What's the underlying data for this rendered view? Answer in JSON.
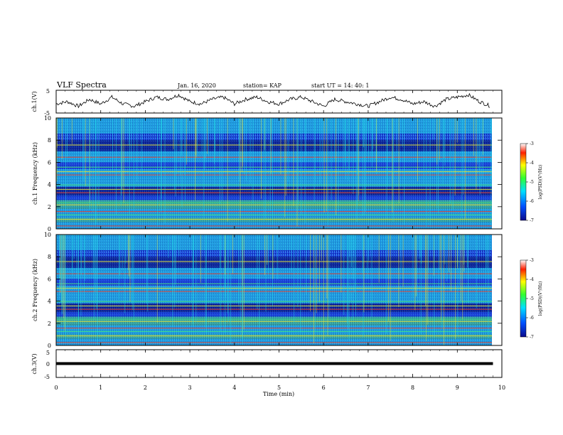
{
  "header": {
    "title": "VLF Spectra",
    "date": "Jan. 16, 2020",
    "station": "station= KAP",
    "start": "start UT =  14: 40: 1"
  },
  "chart_data": [
    {
      "type": "line",
      "name": "ch1-waveform",
      "ylabel": "ch.1(V)",
      "ylim": [
        -5,
        5
      ],
      "xlim": [
        0,
        10
      ],
      "x": [
        0,
        0.25,
        0.5,
        0.75,
        1,
        1.25,
        1.5,
        1.75,
        2,
        2.25,
        2.5,
        2.75,
        3,
        3.25,
        3.5,
        3.75,
        4,
        4.25,
        4.5,
        4.75,
        5,
        5.25,
        5.5,
        5.75,
        6,
        6.25,
        6.5,
        6.75,
        7,
        7.25,
        7.5,
        7.75,
        8,
        8.25,
        8.5,
        8.75,
        9,
        9.25,
        9.5,
        9.75
      ],
      "y": [
        -1,
        0,
        -2,
        1,
        -1,
        2,
        -1,
        -2,
        0,
        2,
        1,
        3,
        0,
        -1,
        1,
        2,
        -1,
        1,
        2,
        0,
        -1,
        1,
        2,
        0,
        -2,
        1,
        0,
        -1,
        -2,
        0,
        2,
        1,
        -1,
        0,
        -2,
        1,
        2,
        3,
        0,
        -2
      ],
      "ytick_labels": [
        "5",
        "-5"
      ]
    },
    {
      "type": "heatmap",
      "name": "ch1-spectrogram",
      "ylabel": "ch.1 Frequency (kHz)",
      "ylim": [
        0,
        10
      ],
      "xlim": [
        0,
        10
      ],
      "ytick_labels": [
        "0",
        "2",
        "4",
        "6",
        "8",
        "10"
      ],
      "colorbar": {
        "label": "log(PSD)(V²/Hz)",
        "range": [
          -7,
          -3
        ],
        "tick_labels": [
          "-3",
          "-4",
          "-5",
          "-6",
          "-7"
        ]
      }
    },
    {
      "type": "heatmap",
      "name": "ch2-spectrogram",
      "ylabel": "ch.2 Frequency (kHz)",
      "ylim": [
        0,
        10
      ],
      "xlim": [
        0,
        10
      ],
      "ytick_labels": [
        "0",
        "2",
        "4",
        "6",
        "8",
        "10"
      ],
      "colorbar": {
        "label": "log(PSD)(V²/Hz)",
        "range": [
          -7,
          -3
        ],
        "tick_labels": [
          "-3",
          "-4",
          "-5",
          "-6",
          "-7"
        ]
      }
    },
    {
      "type": "line",
      "name": "ch3-waveform",
      "ylabel": "ch.3(V)",
      "ylim": [
        -5,
        5
      ],
      "xlim": [
        0,
        10
      ],
      "x": [
        0,
        9.8
      ],
      "y": [
        0,
        0
      ],
      "ytick_labels": [
        "5",
        "0",
        "-5"
      ]
    }
  ],
  "xaxis": {
    "label": "Time (min)",
    "tick_labels": [
      "0",
      "1",
      "2",
      "3",
      "4",
      "5",
      "6",
      "7",
      "8",
      "9",
      "10"
    ]
  },
  "colors": {
    "spectrogram_background": "#1a3fd8",
    "dark_band": "#05106e",
    "cyan": "#22d8e6",
    "green": "#46e07a",
    "yellow": "#e8e63a",
    "red": "#e8402a"
  }
}
